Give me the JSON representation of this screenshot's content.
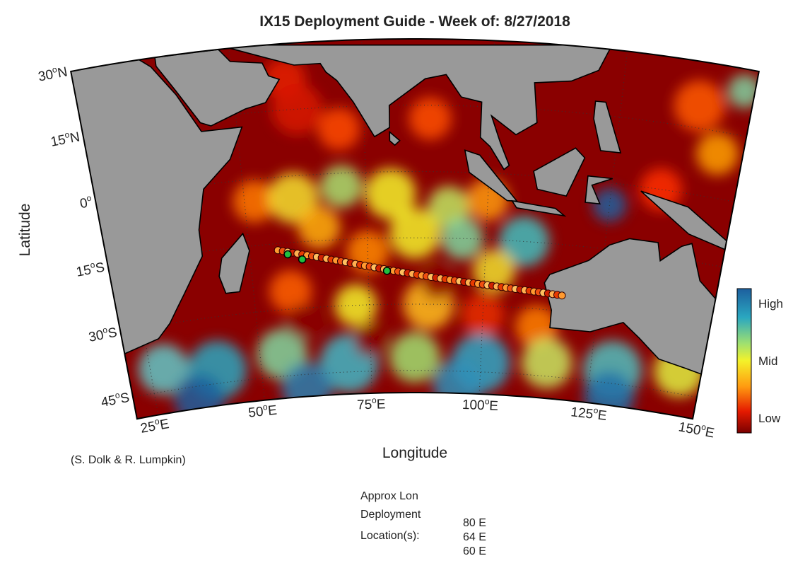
{
  "header": {
    "title": "IX15 Deployment Guide - Week of: 8/27/2018"
  },
  "map": {
    "ylabel": "Latitude",
    "xlabel": "Longitude",
    "lat_ticks": [
      {
        "number": "30",
        "degree": "o",
        "hemisphere": "N"
      },
      {
        "number": "15",
        "degree": "o",
        "hemisphere": "N"
      },
      {
        "number": "0",
        "degree": "o",
        "hemisphere": ""
      },
      {
        "number": "15",
        "degree": "o",
        "hemisphere": "S"
      },
      {
        "number": "30",
        "degree": "o",
        "hemisphere": "S"
      },
      {
        "number": "45",
        "degree": "o",
        "hemisphere": "S"
      }
    ],
    "lon_ticks": [
      {
        "number": "25",
        "degree": "o",
        "hemisphere": "E"
      },
      {
        "number": "50",
        "degree": "o",
        "hemisphere": "E"
      },
      {
        "number": "75",
        "degree": "o",
        "hemisphere": "E"
      },
      {
        "number": "100",
        "degree": "o",
        "hemisphere": "E"
      },
      {
        "number": "125",
        "degree": "o",
        "hemisphere": "E"
      },
      {
        "number": "150",
        "degree": "o",
        "hemisphere": "E"
      }
    ],
    "colorbar": {
      "labels": [
        "High",
        "Mid",
        "Low"
      ]
    }
  },
  "credit": "(S. Dolk & R. Lumpkin)",
  "deployment": {
    "heading": [
      "Approx Lon",
      "Deployment",
      "Location(s):"
    ],
    "locations": [
      "80 E",
      "64 E",
      "60 E"
    ]
  }
}
